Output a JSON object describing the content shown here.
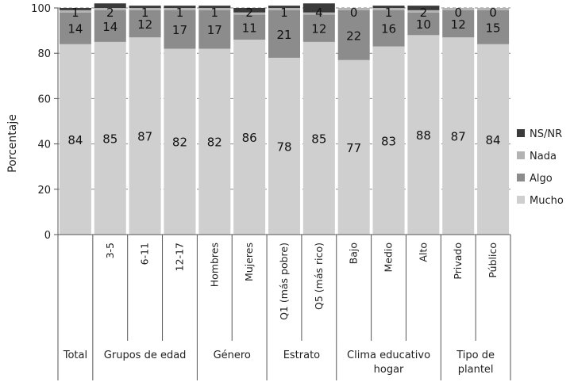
{
  "chart_data": {
    "type": "bar",
    "stacked": true,
    "ylabel": "Porcentaje",
    "ylim": [
      0,
      100
    ],
    "yticks": [
      "0",
      "20",
      "40",
      "60",
      "80",
      "100"
    ],
    "grid": true,
    "legend_position": "right",
    "categories": [
      "",
      "3-5",
      "6-11",
      "12-17",
      "Hombres",
      "Mujeres",
      "Q1 (más pobre)",
      "Q5 (más rico)",
      "Bajo",
      "Medio",
      "Alto",
      "Privado",
      "Público"
    ],
    "groups": [
      {
        "label": "Total",
        "size": 1
      },
      {
        "label": "Grupos de edad",
        "size": 3
      },
      {
        "label": "Género",
        "size": 2
      },
      {
        "label": "Estrato",
        "size": 2
      },
      {
        "label": "Clima educativo hogar",
        "size": 3
      },
      {
        "label": "Tipo de plantel",
        "size": 2
      }
    ],
    "series": [
      {
        "name": "Mucho",
        "color": "#cfcfcf",
        "values": [
          84,
          85,
          87,
          82,
          82,
          86,
          78,
          85,
          77,
          83,
          88,
          87,
          84
        ]
      },
      {
        "name": "Algo",
        "color": "#8c8c8c",
        "values": [
          14,
          14,
          12,
          17,
          17,
          11,
          21,
          12,
          22,
          16,
          10,
          12,
          15
        ]
      },
      {
        "name": "Nada",
        "color": "#b3b3b3",
        "values": [
          1,
          1,
          1,
          1,
          1,
          1,
          1,
          1,
          1,
          1,
          1,
          1,
          1
        ]
      },
      {
        "name": "NS/NR",
        "color": "#3a3a3a",
        "values": [
          1,
          2,
          1,
          1,
          1,
          2,
          1,
          4,
          0,
          1,
          2,
          0,
          0
        ]
      }
    ]
  }
}
